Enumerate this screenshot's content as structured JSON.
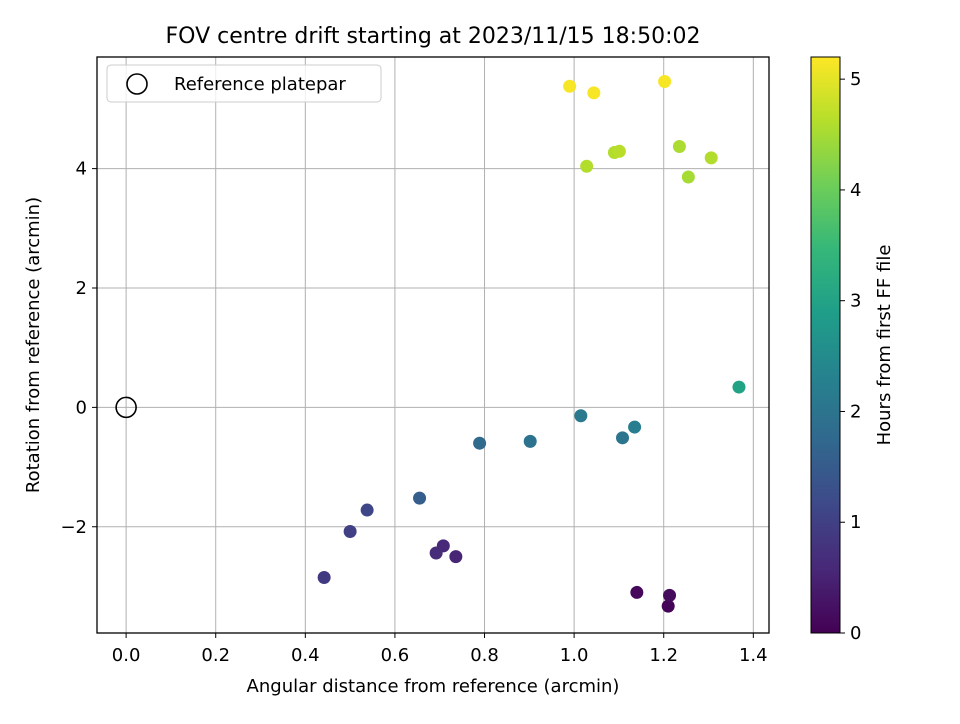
{
  "chart_data": {
    "type": "scatter",
    "title": "FOV centre drift starting at 2023/11/15 18:50:02",
    "xlabel": "Angular distance from reference (arcmin)",
    "ylabel": "Rotation from reference (arcmin)",
    "xlim": [
      -0.065,
      1.435
    ],
    "ylim": [
      -3.78,
      5.87
    ],
    "xticks": [
      0.0,
      0.2,
      0.4,
      0.6,
      0.8,
      1.0,
      1.2,
      1.4
    ],
    "xtick_labels": [
      "0.0",
      "0.2",
      "0.4",
      "0.6",
      "0.8",
      "1.0",
      "1.2",
      "1.4"
    ],
    "yticks": [
      -2,
      0,
      2,
      4
    ],
    "ytick_labels": [
      "−2",
      "0",
      "2",
      "4"
    ],
    "grid": true,
    "legend": {
      "placement": "top-left",
      "entries": [
        "Reference platepar"
      ]
    },
    "reference_point": {
      "x": 0.0,
      "y": 0.0
    },
    "colorbar": {
      "label": "Hours from first FF file",
      "range": [
        0,
        5.2
      ],
      "ticks": [
        0,
        1,
        2,
        3,
        4,
        5
      ],
      "tick_labels": [
        "0",
        "1",
        "2",
        "3",
        "4",
        "5"
      ],
      "colormap": "viridis",
      "stops": [
        "#440154",
        "#482878",
        "#3e4989",
        "#31688e",
        "#26828e",
        "#1f9e89",
        "#35b779",
        "#6ece58",
        "#b5de2b",
        "#fde725"
      ]
    },
    "points": [
      {
        "x": 1.21,
        "y": -3.33,
        "hours": 0.05
      },
      {
        "x": 1.14,
        "y": -3.1,
        "hours": 0.1
      },
      {
        "x": 1.213,
        "y": -3.15,
        "hours": 0.15
      },
      {
        "x": 0.736,
        "y": -2.5,
        "hours": 0.55
      },
      {
        "x": 0.708,
        "y": -2.32,
        "hours": 0.6
      },
      {
        "x": 0.692,
        "y": -2.44,
        "hours": 0.65
      },
      {
        "x": 0.442,
        "y": -2.85,
        "hours": 0.9
      },
      {
        "x": 0.5,
        "y": -2.08,
        "hours": 1.0
      },
      {
        "x": 0.538,
        "y": -1.72,
        "hours": 1.1
      },
      {
        "x": 0.655,
        "y": -1.52,
        "hours": 1.55
      },
      {
        "x": 0.789,
        "y": -0.6,
        "hours": 1.8
      },
      {
        "x": 0.902,
        "y": -0.57,
        "hours": 1.95
      },
      {
        "x": 1.015,
        "y": -0.14,
        "hours": 2.1
      },
      {
        "x": 1.108,
        "y": -0.51,
        "hours": 2.05
      },
      {
        "x": 1.135,
        "y": -0.33,
        "hours": 2.2
      },
      {
        "x": 1.368,
        "y": 0.34,
        "hours": 3.0
      },
      {
        "x": 1.028,
        "y": 4.04,
        "hours": 4.6
      },
      {
        "x": 1.09,
        "y": 4.27,
        "hours": 4.6
      },
      {
        "x": 1.101,
        "y": 4.29,
        "hours": 4.65
      },
      {
        "x": 1.235,
        "y": 4.37,
        "hours": 4.55
      },
      {
        "x": 1.306,
        "y": 4.18,
        "hours": 4.6
      },
      {
        "x": 1.255,
        "y": 3.86,
        "hours": 4.5
      },
      {
        "x": 0.99,
        "y": 5.38,
        "hours": 5.15
      },
      {
        "x": 1.044,
        "y": 5.27,
        "hours": 5.15
      },
      {
        "x": 1.202,
        "y": 5.46,
        "hours": 5.15
      }
    ]
  }
}
